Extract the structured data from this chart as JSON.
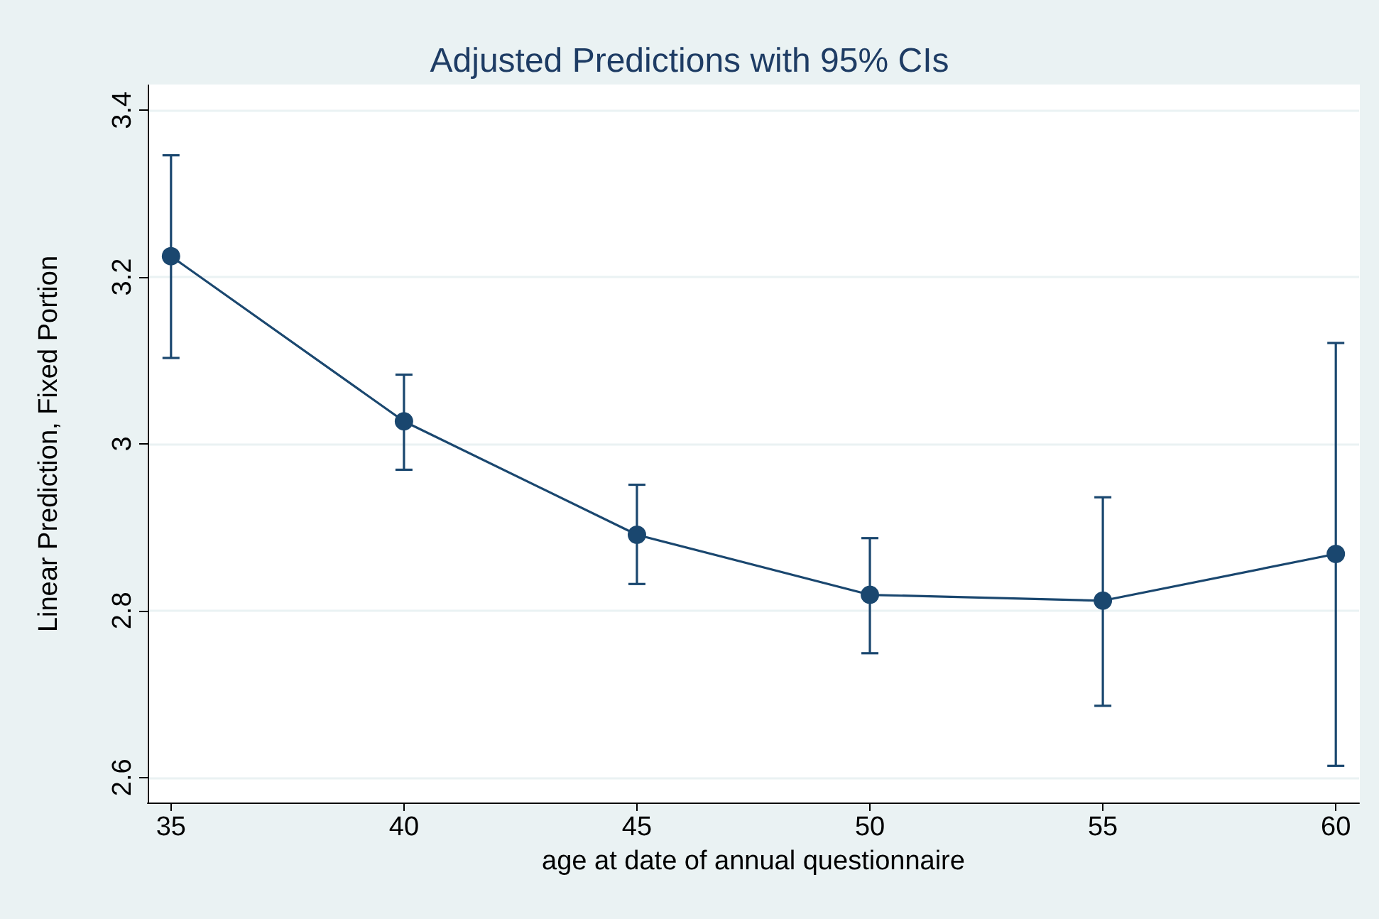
{
  "chart_data": {
    "type": "line",
    "title": "Adjusted Predictions with 95% CIs",
    "xlabel": "age at date of annual questionnaire",
    "ylabel": "Linear Prediction, Fixed Portion",
    "x": [
      35,
      40,
      45,
      50,
      55,
      60
    ],
    "series": [
      {
        "color": "#1a476f",
        "values": [
          3.225,
          3.027,
          2.891,
          2.819,
          2.812,
          2.868
        ],
        "errors": [
          [
            3.103,
            3.346
          ],
          [
            2.969,
            3.083
          ],
          [
            2.832,
            2.951
          ],
          [
            2.749,
            2.887
          ],
          [
            2.686,
            2.936
          ],
          [
            2.614,
            3.121
          ]
        ]
      }
    ],
    "xlim": [
      34.5,
      60.5
    ],
    "xticks": [
      35,
      40,
      45,
      50,
      55,
      60
    ],
    "ylim": [
      2.57,
      3.43
    ],
    "yticks": [
      2.6,
      2.8,
      3,
      3.2,
      3.4
    ],
    "grid": "y",
    "marker": "circle",
    "line_style": "solid"
  }
}
